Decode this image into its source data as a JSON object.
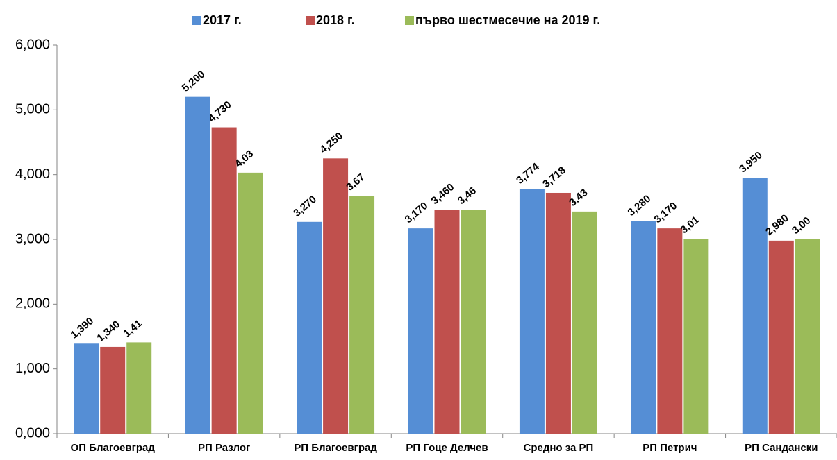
{
  "chart_data": {
    "type": "bar",
    "categories": [
      "ОП Благоевград",
      "РП Разлог",
      "РП Благоевград",
      "РП Гоце Делчев",
      "Средно за РП",
      "РП Петрич",
      "РП Сандански"
    ],
    "series": [
      {
        "name": "2017 г.",
        "color": "#558ed5",
        "values": [
          1.39,
          5.2,
          3.27,
          3.17,
          3.774,
          3.28,
          3.95
        ],
        "value_labels": [
          "1,390",
          "5,200",
          "3,270",
          "3,170",
          "3,774",
          "3,280",
          "3,950"
        ]
      },
      {
        "name": "2018 г.",
        "color": "#c0504d",
        "values": [
          1.34,
          4.73,
          4.25,
          3.46,
          3.718,
          3.17,
          2.98
        ],
        "value_labels": [
          "1,340",
          "4,730",
          "4,250",
          "3,460",
          "3,718",
          "3,170",
          "2,980"
        ]
      },
      {
        "name": "първо шестмесечие на 2019 г.",
        "color": "#9bbb59",
        "values": [
          1.41,
          4.03,
          3.67,
          3.46,
          3.43,
          3.01,
          3.0
        ],
        "value_labels": [
          "1,41",
          "4,03",
          "3,67",
          "3,46",
          "3,43",
          "3,01",
          "3,00"
        ]
      }
    ],
    "ylim": [
      0,
      6
    ],
    "yticks": [
      {
        "value": 0,
        "label": "0,000"
      },
      {
        "value": 1,
        "label": "1,000"
      },
      {
        "value": 2,
        "label": "2,000"
      },
      {
        "value": 3,
        "label": "3,000"
      },
      {
        "value": 4,
        "label": "4,000"
      },
      {
        "value": 5,
        "label": "5,000"
      },
      {
        "value": 6,
        "label": "6,000"
      }
    ],
    "legend": "top",
    "grid": false
  }
}
